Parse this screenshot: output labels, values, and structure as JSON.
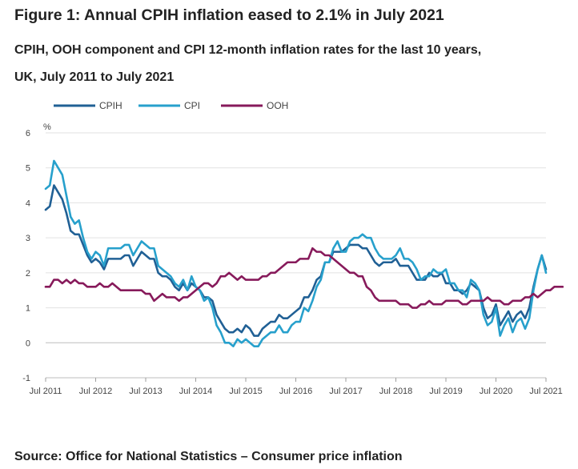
{
  "figure": {
    "title": "Figure 1: Annual CPIH inflation eased to 2.1% in July 2021",
    "subtitle": "CPIH, OOH component and CPI 12-month inflation rates for the last 10 years, UK, July 2011 to July 2021",
    "source": "Source: Office for National Statistics – Consumer price inflation"
  },
  "chart_data": {
    "type": "line",
    "ylabel": "%",
    "ylim": [
      -1,
      6
    ],
    "yticks": [
      -1,
      0,
      1,
      2,
      3,
      4,
      5,
      6
    ],
    "grid": true,
    "legend_position": "top-left",
    "x_start": "Jul 2011",
    "x_end": "Jul 2021",
    "x_tick_labels": [
      "Jul 2011",
      "Jul 2012",
      "Jul 2013",
      "Jul 2014",
      "Jul 2015",
      "Jul 2016",
      "Jul 2017",
      "Jul 2018",
      "Jul 2019",
      "Jul 2020",
      "Jul 2021"
    ],
    "series": [
      {
        "name": "CPIH",
        "color": "#206095",
        "values": [
          3.8,
          3.9,
          4.5,
          4.3,
          4.1,
          3.7,
          3.2,
          3.1,
          3.1,
          2.8,
          2.5,
          2.3,
          2.4,
          2.3,
          2.1,
          2.4,
          2.4,
          2.4,
          2.4,
          2.5,
          2.5,
          2.2,
          2.4,
          2.6,
          2.5,
          2.4,
          2.4,
          2.0,
          1.9,
          1.9,
          1.8,
          1.6,
          1.5,
          1.7,
          1.5,
          1.7,
          1.6,
          1.5,
          1.3,
          1.3,
          1.2,
          0.8,
          0.6,
          0.4,
          0.3,
          0.3,
          0.4,
          0.3,
          0.5,
          0.4,
          0.2,
          0.2,
          0.4,
          0.5,
          0.6,
          0.6,
          0.8,
          0.7,
          0.7,
          0.8,
          0.9,
          1.0,
          1.3,
          1.3,
          1.5,
          1.8,
          1.9,
          2.3,
          2.3,
          2.6,
          2.6,
          2.6,
          2.7,
          2.8,
          2.8,
          2.8,
          2.7,
          2.7,
          2.5,
          2.3,
          2.2,
          2.3,
          2.3,
          2.3,
          2.4,
          2.2,
          2.2,
          2.2,
          2.0,
          1.8,
          1.8,
          1.8,
          2.0,
          1.9,
          1.9,
          2.0,
          1.7,
          1.7,
          1.5,
          1.5,
          1.4,
          1.5,
          1.7,
          1.6,
          1.5,
          1.0,
          0.7,
          0.8,
          1.1,
          0.5,
          0.7,
          0.9,
          0.6,
          0.8,
          0.9,
          0.7,
          1.0,
          1.6,
          2.1,
          2.5,
          2.1
        ]
      },
      {
        "name": "CPI",
        "color": "#27a0cc",
        "values": [
          4.4,
          4.5,
          5.2,
          5.0,
          4.8,
          4.2,
          3.6,
          3.4,
          3.5,
          3.0,
          2.6,
          2.4,
          2.6,
          2.5,
          2.2,
          2.7,
          2.7,
          2.7,
          2.7,
          2.8,
          2.8,
          2.5,
          2.7,
          2.9,
          2.8,
          2.7,
          2.7,
          2.2,
          2.1,
          2.0,
          1.9,
          1.7,
          1.6,
          1.8,
          1.5,
          1.9,
          1.6,
          1.5,
          1.2,
          1.3,
          1.0,
          0.5,
          0.3,
          0.0,
          0.0,
          -0.1,
          0.1,
          0.0,
          0.1,
          0.0,
          -0.1,
          -0.1,
          0.1,
          0.2,
          0.3,
          0.3,
          0.5,
          0.3,
          0.3,
          0.5,
          0.6,
          0.6,
          1.0,
          0.9,
          1.2,
          1.6,
          1.8,
          2.3,
          2.3,
          2.7,
          2.9,
          2.6,
          2.6,
          2.9,
          3.0,
          3.0,
          3.1,
          3.0,
          3.0,
          2.7,
          2.5,
          2.4,
          2.4,
          2.4,
          2.5,
          2.7,
          2.4,
          2.4,
          2.3,
          2.1,
          1.8,
          1.9,
          1.9,
          2.1,
          2.0,
          2.0,
          2.1,
          1.7,
          1.7,
          1.5,
          1.5,
          1.3,
          1.8,
          1.7,
          1.5,
          0.8,
          0.5,
          0.6,
          1.0,
          0.2,
          0.5,
          0.7,
          0.3,
          0.6,
          0.7,
          0.4,
          0.7,
          1.5,
          2.1,
          2.5,
          2.0
        ]
      },
      {
        "name": "OOH",
        "color": "#871a5b",
        "values": [
          1.6,
          1.6,
          1.8,
          1.8,
          1.7,
          1.8,
          1.7,
          1.8,
          1.7,
          1.7,
          1.6,
          1.6,
          1.6,
          1.7,
          1.6,
          1.6,
          1.7,
          1.6,
          1.5,
          1.5,
          1.5,
          1.5,
          1.5,
          1.5,
          1.4,
          1.4,
          1.2,
          1.3,
          1.4,
          1.3,
          1.3,
          1.3,
          1.2,
          1.3,
          1.3,
          1.4,
          1.5,
          1.6,
          1.7,
          1.7,
          1.6,
          1.7,
          1.9,
          1.9,
          2.0,
          1.9,
          1.8,
          1.9,
          1.8,
          1.8,
          1.8,
          1.8,
          1.9,
          1.9,
          2.0,
          2.0,
          2.1,
          2.2,
          2.3,
          2.3,
          2.3,
          2.4,
          2.4,
          2.4,
          2.7,
          2.6,
          2.6,
          2.5,
          2.5,
          2.4,
          2.3,
          2.2,
          2.1,
          2.0,
          2.0,
          1.9,
          1.9,
          1.6,
          1.5,
          1.3,
          1.2,
          1.2,
          1.2,
          1.2,
          1.2,
          1.1,
          1.1,
          1.1,
          1.0,
          1.0,
          1.1,
          1.1,
          1.2,
          1.1,
          1.1,
          1.1,
          1.2,
          1.2,
          1.2,
          1.2,
          1.1,
          1.1,
          1.2,
          1.2,
          1.2,
          1.2,
          1.3,
          1.2,
          1.2,
          1.2,
          1.1,
          1.1,
          1.2,
          1.2,
          1.2,
          1.3,
          1.3,
          1.4,
          1.3,
          1.4,
          1.5,
          1.5,
          1.6,
          1.6,
          1.6
        ]
      }
    ]
  }
}
